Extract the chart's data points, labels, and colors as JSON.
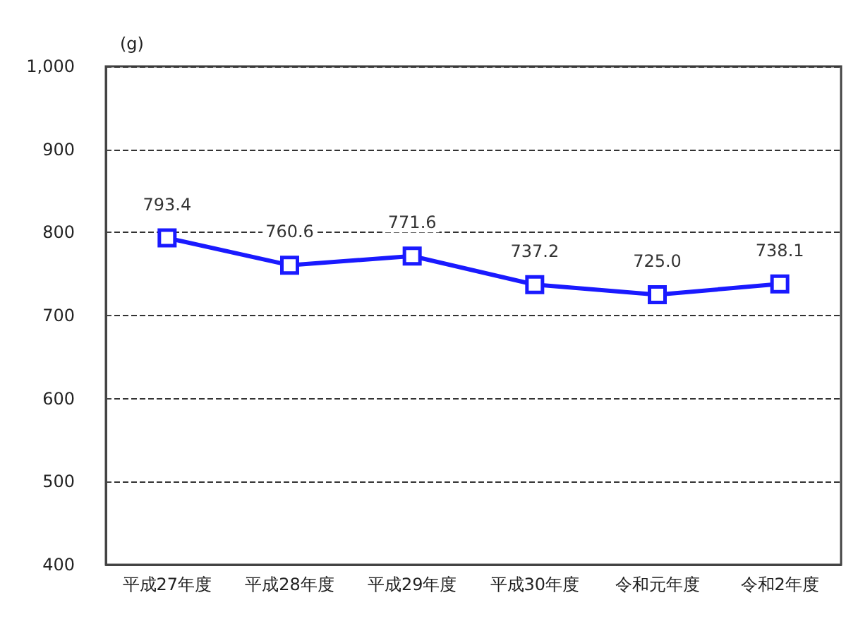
{
  "chart_data": {
    "type": "line",
    "ylabel": "(g)",
    "categories": [
      "平成27年度",
      "平成28年度",
      "平成29年度",
      "平成30年度",
      "令和元年度",
      "令和2年度"
    ],
    "series": [
      {
        "color": "#1a1aff",
        "values": [
          793.4,
          760.6,
          771.6,
          737.2,
          725.0,
          738.1
        ],
        "value_labels": [
          "793.4",
          "760.6",
          "771.6",
          "737.2",
          "725.0",
          "738.1"
        ]
      }
    ],
    "ylim": [
      400,
      1000
    ],
    "yticks": [
      400,
      500,
      600,
      700,
      800,
      900,
      {
        "value": 1000,
        "label": "1,000"
      }
    ],
    "grid": "y",
    "marker": "square",
    "line_style": "solid"
  }
}
